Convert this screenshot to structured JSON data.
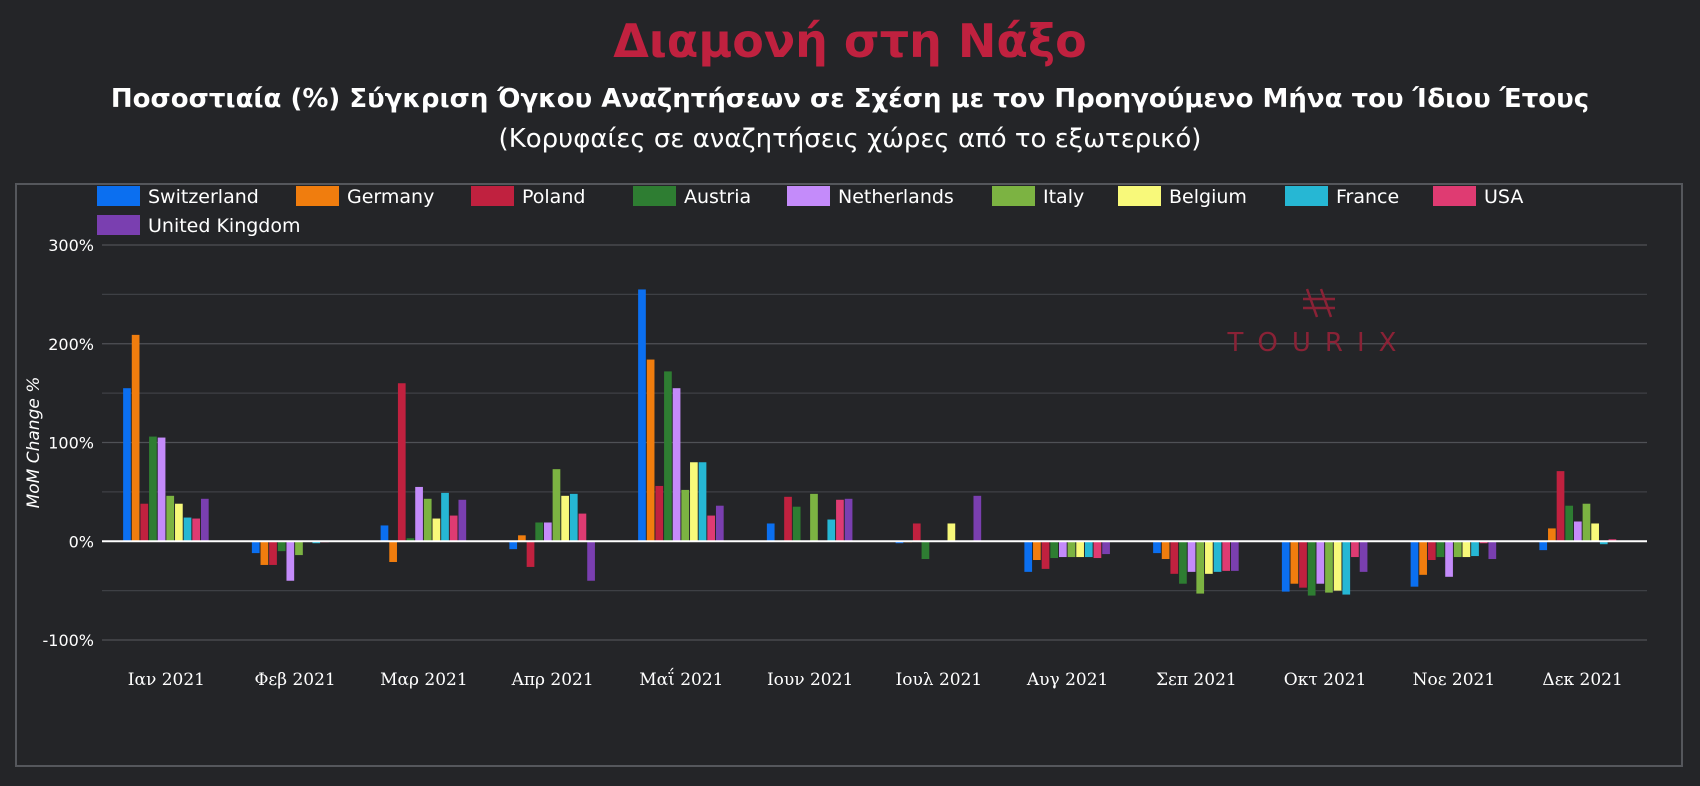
{
  "title": "Διαμονή στη Νάξο",
  "subtitle": "Ποσοστιαία (%) Σύγκριση Όγκου Αναζητήσεων σε Σχέση με τον Προηγούμενο Μήνα του Ίδιου Έτους",
  "subtitle2": "(Κορυφαίες σε αναζητήσεις χώρες από το εξωτερικό)",
  "watermark": "TOURIX",
  "chart_data": {
    "type": "bar",
    "ylabel": "MoM Change %",
    "xlabel": "",
    "ylim": [
      -100,
      300
    ],
    "yticks": [
      -100,
      0,
      100,
      200,
      300
    ],
    "ytick_labels": [
      "-100%",
      "0%",
      "100%",
      "200%",
      "300%"
    ],
    "grid": true,
    "legend_position": "top-left",
    "categories": [
      "Ιαν 2021",
      "Φεβ 2021",
      "Μαρ 2021",
      "Απρ 2021",
      "Μαΐ 2021",
      "Ιουν 2021",
      "Ιουλ 2021",
      "Αυγ 2021",
      "Σεπ 2021",
      "Οκτ 2021",
      "Νοε 2021",
      "Δεκ 2021"
    ],
    "series": [
      {
        "name": "Switzerland",
        "color": "#0b6ff0",
        "values": [
          155,
          -12,
          16,
          -8,
          255,
          18,
          -2,
          -31,
          -12,
          -51,
          -46,
          -9
        ]
      },
      {
        "name": "Germany",
        "color": "#f07d0e",
        "values": [
          209,
          -24,
          -21,
          6,
          184,
          0,
          -1,
          -19,
          -18,
          -43,
          -34,
          13
        ]
      },
      {
        "name": "Poland",
        "color": "#c0213f",
        "values": [
          38,
          -24,
          160,
          -26,
          56,
          45,
          18,
          -28,
          -33,
          -47,
          -19,
          71
        ]
      },
      {
        "name": "Austria",
        "color": "#2e7d32",
        "values": [
          106,
          -10,
          3,
          19,
          172,
          35,
          -18,
          -17,
          -43,
          -55,
          -16,
          36
        ]
      },
      {
        "name": "Netherlands",
        "color": "#c48bfa",
        "values": [
          105,
          -40,
          55,
          19,
          155,
          0,
          0,
          -16,
          -31,
          -43,
          -36,
          20
        ]
      },
      {
        "name": "Italy",
        "color": "#7cb342",
        "values": [
          46,
          -14,
          43,
          73,
          52,
          48,
          0,
          -16,
          -53,
          -52,
          -16,
          38
        ]
      },
      {
        "name": "Belgium",
        "color": "#f8f97a",
        "values": [
          38,
          0,
          23,
          46,
          80,
          0,
          18,
          -16,
          -33,
          -50,
          -16,
          18
        ]
      },
      {
        "name": "France",
        "color": "#26b7d4",
        "values": [
          24,
          -2,
          49,
          48,
          80,
          22,
          0,
          -16,
          -31,
          -54,
          -15,
          -3
        ]
      },
      {
        "name": "USA",
        "color": "#df3b72",
        "values": [
          23,
          -1,
          26,
          28,
          26,
          42,
          0,
          -17,
          -30,
          -16,
          -2,
          2
        ]
      },
      {
        "name": "United Kingdom",
        "color": "#7a3fb0",
        "values": [
          43,
          0,
          42,
          -40,
          36,
          43,
          46,
          -13,
          -30,
          -31,
          -18,
          0
        ]
      }
    ]
  }
}
